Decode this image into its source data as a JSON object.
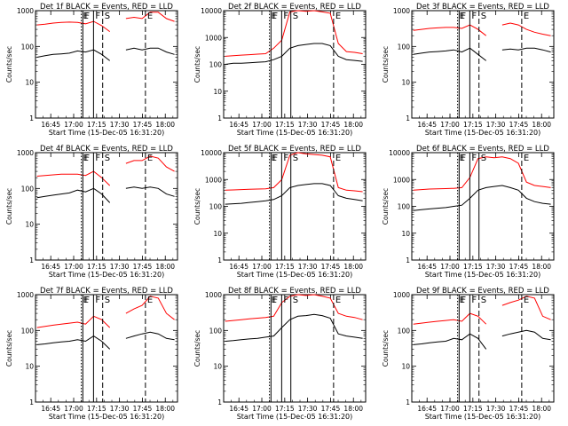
{
  "figure": {
    "ylabel": "Counts/sec",
    "xlabel": "Start Time (15-Dec-05 16:31:20)",
    "colors": {
      "events": "#000000",
      "lld": "#ff0000",
      "axes": "#000000"
    }
  },
  "chart_data": [
    {
      "type": "line",
      "title": "Det 1f BLACK = Events, RED = LLD",
      "xlabel": "Start Time (15-Dec-05 16:31:20)",
      "ylabel": "Counts/sec",
      "x_ticks": [
        "16:45",
        "17:00",
        "17:15",
        "17:30",
        "17:45",
        "18:00"
      ],
      "y_ticks": [
        "1",
        "10",
        "100",
        "1000"
      ],
      "ylim": [
        1,
        1000
      ],
      "yscale": "log",
      "markers": [
        {
          "label": "E",
          "style": "dotted",
          "pos": "17:05"
        },
        {
          "label": "F",
          "style": "solid",
          "pos": "17:06"
        },
        {
          "label": "F",
          "style": "solid",
          "pos": "17:13"
        },
        {
          "label": "S",
          "style": "dashed",
          "pos": "17:19"
        },
        {
          "label": "E",
          "style": "dashed",
          "pos": "17:47"
        }
      ],
      "series": [
        {
          "name": "LLD",
          "color": "#ff0000",
          "values": [
            400,
            420,
            450,
            470,
            480,
            470,
            430,
            500,
            380,
            260,
            0,
            600,
            650,
            600,
            900,
            900,
            600,
            500
          ]
        },
        {
          "name": "Events",
          "color": "#000000",
          "values": [
            50,
            55,
            60,
            62,
            65,
            75,
            70,
            80,
            60,
            40,
            0,
            80,
            90,
            80,
            90,
            90,
            70,
            60
          ]
        }
      ]
    },
    {
      "type": "line",
      "title": "Det 2f BLACK = Events, RED = LLD",
      "xlabel": "Start Time (15-Dec-05 16:31:20)",
      "ylabel": "Counts/sec",
      "x_ticks": [
        "16:45",
        "17:00",
        "17:15",
        "17:30",
        "17:45",
        "18:00"
      ],
      "y_ticks": [
        "1",
        "10",
        "100",
        "1000",
        "10000"
      ],
      "ylim": [
        1,
        10000
      ],
      "yscale": "log",
      "markers": [
        {
          "label": "E",
          "style": "dotted",
          "pos": "17:05"
        },
        {
          "label": "F",
          "style": "solid",
          "pos": "17:06"
        },
        {
          "label": "F",
          "style": "solid",
          "pos": "17:13"
        },
        {
          "label": "S",
          "style": "solid",
          "pos": "17:19"
        },
        {
          "label": "E",
          "style": "dashed",
          "pos": "17:47"
        }
      ],
      "series": [
        {
          "name": "LLD",
          "color": "#ff0000",
          "values": [
            200,
            210,
            220,
            230,
            240,
            250,
            400,
            800,
            9000,
            10000,
            9500,
            10000,
            9000,
            8000,
            600,
            300,
            280,
            250
          ]
        },
        {
          "name": "Events",
          "color": "#000000",
          "values": [
            100,
            110,
            110,
            115,
            120,
            125,
            150,
            200,
            400,
            500,
            550,
            600,
            600,
            500,
            200,
            150,
            140,
            130
          ]
        }
      ]
    },
    {
      "type": "line",
      "title": "Det 3f BLACK = Events, RED = LLD",
      "xlabel": "Start Time (15-Dec-05 16:31:20)",
      "ylabel": "Counts/sec",
      "x_ticks": [
        "16:45",
        "17:00",
        "17:15",
        "17:30",
        "17:45",
        "18:00"
      ],
      "y_ticks": [
        "1",
        "10",
        "100",
        "1000"
      ],
      "ylim": [
        1,
        1000
      ],
      "yscale": "log",
      "markers": [
        {
          "label": "E",
          "style": "dotted",
          "pos": "17:05"
        },
        {
          "label": "F",
          "style": "solid",
          "pos": "17:06"
        },
        {
          "label": "F",
          "style": "solid",
          "pos": "17:13"
        },
        {
          "label": "S",
          "style": "dashed",
          "pos": "17:19"
        },
        {
          "label": "E",
          "style": "dashed",
          "pos": "17:47"
        }
      ],
      "series": [
        {
          "name": "LLD",
          "color": "#ff0000",
          "values": [
            280,
            300,
            320,
            330,
            340,
            340,
            320,
            400,
            300,
            200,
            0,
            400,
            450,
            400,
            300,
            250,
            220,
            200
          ]
        },
        {
          "name": "Events",
          "color": "#000000",
          "values": [
            60,
            65,
            70,
            72,
            75,
            80,
            70,
            90,
            60,
            40,
            0,
            80,
            85,
            80,
            90,
            90,
            80,
            70
          ]
        }
      ]
    },
    {
      "type": "line",
      "title": "Det 4f BLACK = Events, RED = LLD",
      "xlabel": "Start Time (15-Dec-05 16:31:20)",
      "ylabel": "Counts/sec",
      "x_ticks": [
        "16:45",
        "17:00",
        "17:15",
        "17:30",
        "17:45",
        "18:00"
      ],
      "y_ticks": [
        "1",
        "10",
        "100",
        "1000"
      ],
      "ylim": [
        1,
        1000
      ],
      "yscale": "log",
      "markers": [
        {
          "label": "E",
          "style": "dotted",
          "pos": "17:05"
        },
        {
          "label": "F",
          "style": "solid",
          "pos": "17:06"
        },
        {
          "label": "F",
          "style": "solid",
          "pos": "17:13"
        },
        {
          "label": "S",
          "style": "dashed",
          "pos": "17:19"
        },
        {
          "label": "E",
          "style": "dashed",
          "pos": "17:47"
        }
      ],
      "series": [
        {
          "name": "LLD",
          "color": "#ff0000",
          "values": [
            220,
            230,
            240,
            250,
            250,
            250,
            230,
            300,
            200,
            120,
            0,
            500,
            600,
            600,
            800,
            700,
            400,
            300
          ]
        },
        {
          "name": "Events",
          "color": "#000000",
          "values": [
            55,
            60,
            65,
            70,
            75,
            90,
            80,
            100,
            70,
            40,
            0,
            100,
            110,
            100,
            110,
            100,
            70,
            60
          ]
        }
      ]
    },
    {
      "type": "line",
      "title": "Det 5f BLACK = Events, RED = LLD",
      "xlabel": "Start Time (15-Dec-05 16:31:20)",
      "ylabel": "Counts/sec",
      "x_ticks": [
        "16:45",
        "17:00",
        "17:15",
        "17:30",
        "17:45",
        "18:00"
      ],
      "y_ticks": [
        "1",
        "10",
        "100",
        "1000",
        "10000"
      ],
      "ylim": [
        1,
        10000
      ],
      "yscale": "log",
      "markers": [
        {
          "label": "E",
          "style": "dotted",
          "pos": "17:05"
        },
        {
          "label": "F",
          "style": "solid",
          "pos": "17:06"
        },
        {
          "label": "F",
          "style": "solid",
          "pos": "17:13"
        },
        {
          "label": "S",
          "style": "solid",
          "pos": "17:19"
        },
        {
          "label": "E",
          "style": "dashed",
          "pos": "17:47"
        }
      ],
      "series": [
        {
          "name": "LLD",
          "color": "#ff0000",
          "values": [
            400,
            410,
            420,
            430,
            440,
            450,
            500,
            1000,
            8000,
            10000,
            9000,
            8500,
            8000,
            7000,
            500,
            400,
            380,
            350
          ]
        },
        {
          "name": "Events",
          "color": "#000000",
          "values": [
            120,
            125,
            130,
            140,
            150,
            160,
            180,
            250,
            500,
            600,
            650,
            700,
            700,
            600,
            250,
            200,
            180,
            160
          ]
        }
      ]
    },
    {
      "type": "line",
      "title": "Det 6f BLACK = Events, RED = LLD",
      "xlabel": "Start Time (15-Dec-05 16:31:20)",
      "ylabel": "Counts/sec",
      "x_ticks": [
        "16:45",
        "17:00",
        "17:15",
        "17:30",
        "17:45",
        "18:00"
      ],
      "y_ticks": [
        "1",
        "10",
        "100",
        "1000",
        "10000"
      ],
      "ylim": [
        1,
        10000
      ],
      "yscale": "log",
      "markers": [
        {
          "label": "E",
          "style": "dotted",
          "pos": "17:05"
        },
        {
          "label": "F",
          "style": "solid",
          "pos": "17:06"
        },
        {
          "label": "F",
          "style": "solid",
          "pos": "17:13"
        },
        {
          "label": "S",
          "style": "solid",
          "pos": "17:19"
        },
        {
          "label": "E",
          "style": "dashed",
          "pos": "17:47"
        }
      ],
      "series": [
        {
          "name": "LLD",
          "color": "#ff0000",
          "values": [
            400,
            420,
            440,
            450,
            460,
            470,
            500,
            1200,
            6000,
            7000,
            6500,
            7000,
            6000,
            4000,
            800,
            600,
            550,
            500
          ]
        },
        {
          "name": "Events",
          "color": "#000000",
          "values": [
            70,
            75,
            80,
            85,
            90,
            100,
            110,
            200,
            400,
            500,
            550,
            600,
            500,
            400,
            200,
            150,
            130,
            120
          ]
        }
      ]
    },
    {
      "type": "line",
      "title": "Det 7f BLACK = Events, RED = LLD",
      "xlabel": "Start Time (15-Dec-05 16:31:20)",
      "ylabel": "Counts/sec",
      "x_ticks": [
        "16:45",
        "17:00",
        "17:15",
        "17:30",
        "17:45",
        "18:00"
      ],
      "y_ticks": [
        "1",
        "10",
        "100",
        "1000"
      ],
      "ylim": [
        1,
        1000
      ],
      "yscale": "log",
      "markers": [
        {
          "label": "E",
          "style": "dotted",
          "pos": "17:05"
        },
        {
          "label": "F",
          "style": "solid",
          "pos": "17:06"
        },
        {
          "label": "F",
          "style": "solid",
          "pos": "17:13"
        },
        {
          "label": "S",
          "style": "dashed",
          "pos": "17:19"
        },
        {
          "label": "E",
          "style": "dashed",
          "pos": "17:47"
        }
      ],
      "series": [
        {
          "name": "LLD",
          "color": "#ff0000",
          "values": [
            120,
            130,
            140,
            150,
            160,
            170,
            150,
            250,
            200,
            120,
            0,
            300,
            400,
            500,
            900,
            800,
            300,
            200
          ]
        },
        {
          "name": "Events",
          "color": "#000000",
          "values": [
            40,
            42,
            45,
            48,
            50,
            55,
            50,
            70,
            50,
            30,
            0,
            60,
            70,
            80,
            90,
            80,
            60,
            55
          ]
        }
      ]
    },
    {
      "type": "line",
      "title": "Det 8f BLACK = Events, RED = LLD",
      "xlabel": "Start Time (15-Dec-05 16:31:20)",
      "ylabel": "Counts/sec",
      "x_ticks": [
        "16:45",
        "17:00",
        "17:15",
        "17:30",
        "17:45",
        "18:00"
      ],
      "y_ticks": [
        "1",
        "10",
        "100",
        "1000"
      ],
      "ylim": [
        1,
        1000
      ],
      "yscale": "log",
      "markers": [
        {
          "label": "E",
          "style": "dotted",
          "pos": "17:05"
        },
        {
          "label": "F",
          "style": "solid",
          "pos": "17:06"
        },
        {
          "label": "F",
          "style": "solid",
          "pos": "17:13"
        },
        {
          "label": "S",
          "style": "solid",
          "pos": "17:19"
        },
        {
          "label": "E",
          "style": "dashed",
          "pos": "17:47"
        }
      ],
      "series": [
        {
          "name": "LLD",
          "color": "#ff0000",
          "values": [
            180,
            190,
            200,
            210,
            220,
            230,
            250,
            600,
            900,
            1000,
            950,
            1000,
            900,
            800,
            300,
            250,
            230,
            200
          ]
        },
        {
          "name": "Events",
          "color": "#000000",
          "values": [
            50,
            52,
            55,
            58,
            60,
            65,
            70,
            120,
            200,
            250,
            260,
            280,
            260,
            220,
            80,
            70,
            65,
            60
          ]
        }
      ]
    },
    {
      "type": "line",
      "title": "Det 9f BLACK = Events, RED = LLD",
      "xlabel": "Start Time (15-Dec-05 16:31:20)",
      "ylabel": "Counts/sec",
      "x_ticks": [
        "16:45",
        "17:00",
        "17:15",
        "17:30",
        "17:45",
        "18:00"
      ],
      "y_ticks": [
        "1",
        "10",
        "100",
        "1000"
      ],
      "ylim": [
        1,
        1000
      ],
      "yscale": "log",
      "markers": [
        {
          "label": "E",
          "style": "dotted",
          "pos": "17:05"
        },
        {
          "label": "F",
          "style": "solid",
          "pos": "17:06"
        },
        {
          "label": "F",
          "style": "solid",
          "pos": "17:13"
        },
        {
          "label": "S",
          "style": "dashed",
          "pos": "17:19"
        },
        {
          "label": "E",
          "style": "dashed",
          "pos": "17:47"
        }
      ],
      "series": [
        {
          "name": "LLD",
          "color": "#ff0000",
          "values": [
            150,
            160,
            170,
            180,
            190,
            200,
            180,
            300,
            250,
            150,
            0,
            500,
            600,
            700,
            900,
            800,
            250,
            200
          ]
        },
        {
          "name": "Events",
          "color": "#000000",
          "values": [
            40,
            42,
            45,
            48,
            50,
            60,
            55,
            80,
            60,
            30,
            0,
            70,
            80,
            90,
            100,
            90,
            60,
            55
          ]
        }
      ]
    }
  ]
}
